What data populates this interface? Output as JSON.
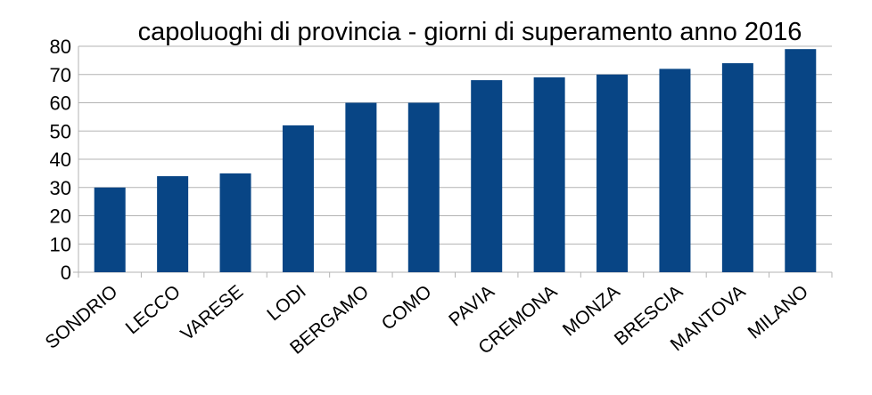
{
  "chart_data": {
    "type": "bar",
    "title": "capoluoghi di provincia - giorni di superamento anno 2016",
    "xlabel": "",
    "ylabel": "",
    "categories": [
      "SONDRIO",
      "LECCO",
      "VARESE",
      "LODI",
      "BERGAMO",
      "COMO",
      "PAVIA",
      "CREMONA",
      "MONZA",
      "BRESCIA",
      "MANTOVA",
      "MILANO"
    ],
    "values": [
      30,
      34,
      35,
      52,
      60,
      60,
      68,
      69,
      70,
      72,
      74,
      79
    ],
    "ylim": [
      0,
      80
    ],
    "yticks": [
      "0",
      "10",
      "20",
      "30",
      "40",
      "50",
      "60",
      "70",
      "80"
    ],
    "grid": true,
    "legend": "none",
    "colors": {
      "bar": "#084585",
      "grid": "#b3b3b3",
      "axis": "#b3b3b3"
    }
  }
}
